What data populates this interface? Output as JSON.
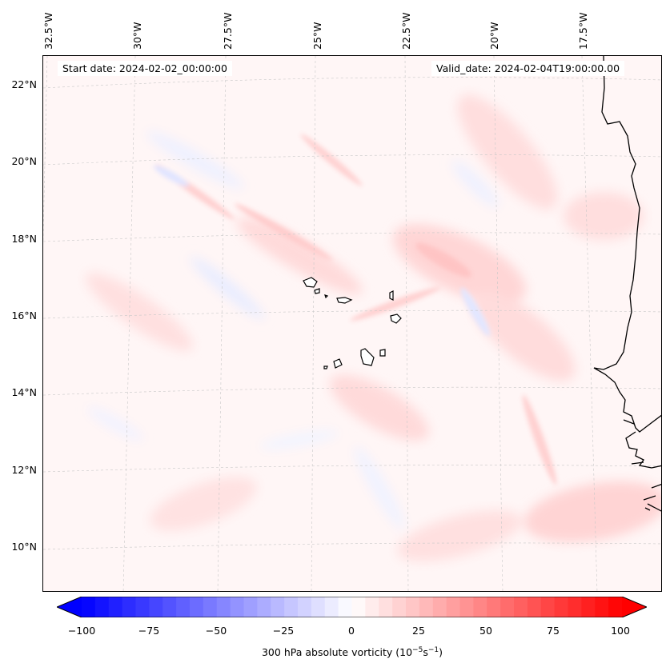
{
  "map": {
    "projection": "lambert",
    "extent": {
      "lon_min": -32.7,
      "lon_max": -16.2,
      "lat_min": 8.8,
      "lat_max": 22.8
    },
    "field": "300 hPa absolute vorticity",
    "gridlines": true,
    "coastline_color": "#000000"
  },
  "info": {
    "start_date": "Start date: 2024-02-02_00:00:00",
    "valid_date": "Valid_date: 2024-02-04T19:00:00.00"
  },
  "lon_labels": [
    "32.5°W",
    "30°W",
    "27.5°W",
    "25°W",
    "22.5°W",
    "20°W",
    "17.5°W"
  ],
  "lat_labels": [
    "22°N",
    "20°N",
    "18°N",
    "16°N",
    "14°N",
    "12°N",
    "10°N"
  ],
  "colorbar": {
    "ticks": [
      "−100",
      "−75",
      "−50",
      "−25",
      "0",
      "25",
      "50",
      "75",
      "100"
    ],
    "range": [
      -100,
      100
    ],
    "levels": 40,
    "cmap": [
      "#0000ff",
      "#ffffff",
      "#ff0000"
    ],
    "extend": "both",
    "label_text": "300 hPa absolute vorticity (10",
    "label_exp1": "−5",
    "label_mid": "s",
    "label_exp2": "−1",
    "label_end": ")"
  }
}
